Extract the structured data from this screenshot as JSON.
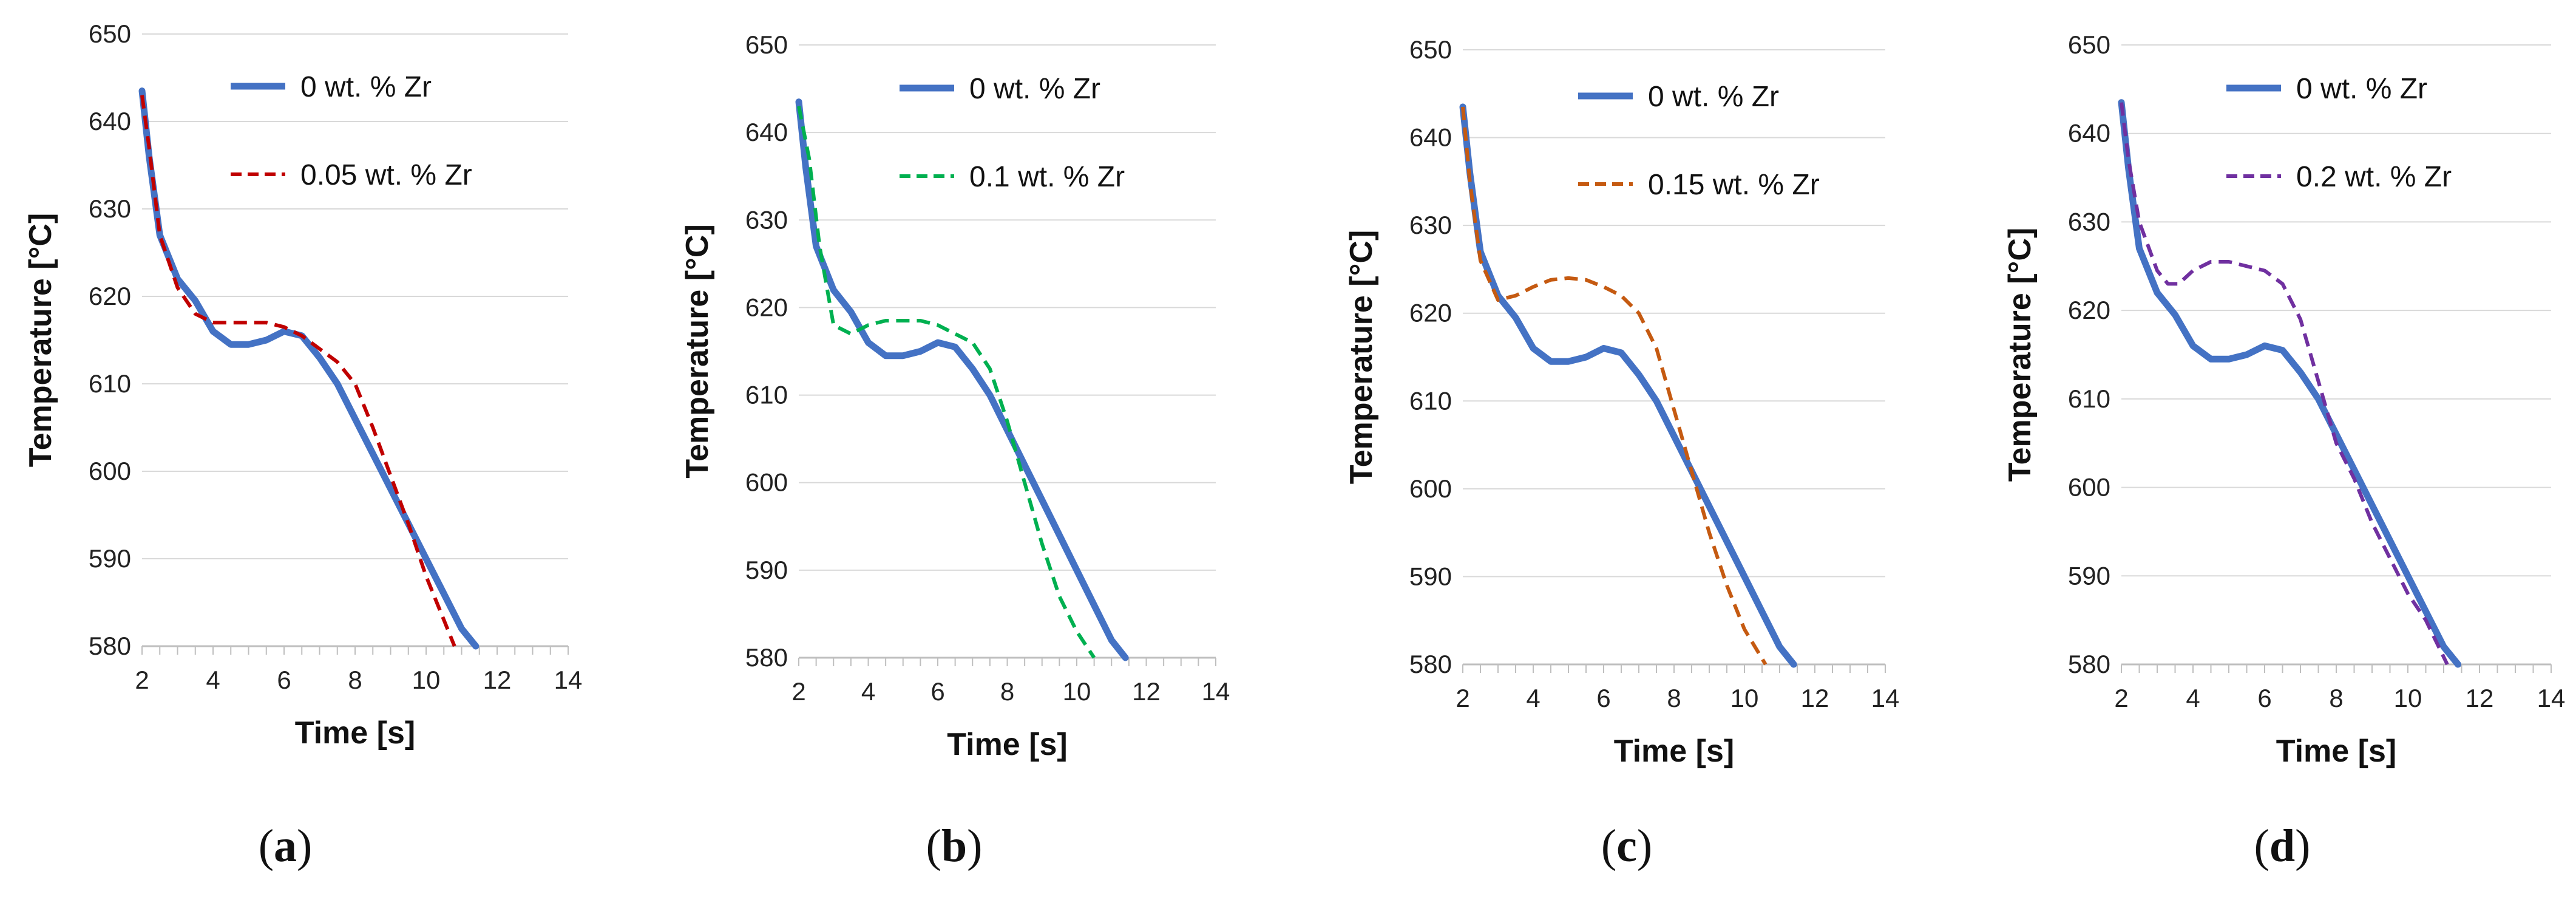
{
  "chart_data": [
    {
      "type": "line",
      "panel_label": "(a)",
      "xlabel": "Time [s]",
      "ylabel": "Temperature [°C]",
      "xlim": [
        2,
        14
      ],
      "ylim": [
        580,
        650
      ],
      "xticks": [
        2,
        4,
        6,
        8,
        10,
        12,
        14
      ],
      "yticks": [
        580,
        590,
        600,
        610,
        620,
        630,
        640,
        650
      ],
      "grid": true,
      "legend_position": "top-right",
      "series": [
        {
          "name": "0 wt. % Zr",
          "color": "#4472C4",
          "dashed": false,
          "x": [
            2,
            2.2,
            2.5,
            3,
            3.5,
            4,
            4.5,
            5,
            5.5,
            6,
            6.5,
            7,
            7.5,
            8,
            8.5,
            9,
            9.5,
            10,
            10.5,
            11,
            11.4
          ],
          "y": [
            643.5,
            636,
            627,
            622,
            619.5,
            616,
            614.5,
            614.5,
            615,
            616,
            615.5,
            613,
            610,
            606,
            602,
            598,
            594,
            590,
            586,
            582,
            580
          ]
        },
        {
          "name": "0.05 wt. % Zr",
          "color": "#C00000",
          "dashed": true,
          "x": [
            2,
            2.2,
            2.5,
            3,
            3.5,
            4,
            4.5,
            5,
            5.5,
            6,
            6.5,
            7,
            7.5,
            8,
            8.5,
            9,
            9.5,
            10,
            10.5,
            10.8
          ],
          "y": [
            643,
            637,
            627,
            621,
            618,
            617,
            617,
            617,
            617,
            616.5,
            615.5,
            614,
            612.5,
            610,
            605,
            599.5,
            594,
            588,
            583,
            580
          ]
        }
      ]
    },
    {
      "type": "line",
      "panel_label": "(b)",
      "xlabel": "Time [s]",
      "ylabel": "Temperature [°C]",
      "xlim": [
        2,
        14
      ],
      "ylim": [
        580,
        650
      ],
      "xticks": [
        2,
        4,
        6,
        8,
        10,
        12,
        14
      ],
      "yticks": [
        580,
        590,
        600,
        610,
        620,
        630,
        640,
        650
      ],
      "grid": true,
      "legend_position": "top-right",
      "series": [
        {
          "name": "0 wt. % Zr",
          "color": "#4472C4",
          "dashed": false,
          "x": [
            2,
            2.2,
            2.5,
            3,
            3.5,
            4,
            4.5,
            5,
            5.5,
            6,
            6.5,
            7,
            7.5,
            8,
            8.5,
            9,
            9.5,
            10,
            10.5,
            11,
            11.4
          ],
          "y": [
            643.5,
            636,
            627,
            622,
            619.5,
            616,
            614.5,
            614.5,
            615,
            616,
            615.5,
            613,
            610,
            606,
            602,
            598,
            594,
            590,
            586,
            582,
            580
          ]
        },
        {
          "name": "0.1 wt. % Zr",
          "color": "#00B050",
          "dashed": true,
          "x": [
            2,
            2.3,
            2.6,
            3,
            3.5,
            4,
            4.5,
            5,
            5.5,
            6,
            6.5,
            7,
            7.5,
            8,
            8.5,
            9,
            9.5,
            10,
            10.5
          ],
          "y": [
            643,
            637,
            627,
            618,
            617,
            618,
            618.5,
            618.5,
            618.5,
            618,
            617,
            616,
            613,
            607,
            600,
            593,
            587,
            583,
            580
          ]
        }
      ]
    },
    {
      "type": "line",
      "panel_label": "(c)",
      "xlabel": "Time [s]",
      "ylabel": "Temperature [°C]",
      "xlim": [
        2,
        14
      ],
      "ylim": [
        580,
        650
      ],
      "xticks": [
        2,
        4,
        6,
        8,
        10,
        12,
        14
      ],
      "yticks": [
        580,
        590,
        600,
        610,
        620,
        630,
        640,
        650
      ],
      "grid": true,
      "legend_position": "top-right",
      "series": [
        {
          "name": "0 wt. % Zr",
          "color": "#4472C4",
          "dashed": false,
          "x": [
            2,
            2.2,
            2.5,
            3,
            3.5,
            4,
            4.5,
            5,
            5.5,
            6,
            6.5,
            7,
            7.5,
            8,
            8.5,
            9,
            9.5,
            10,
            10.5,
            11,
            11.4
          ],
          "y": [
            643.5,
            636,
            627,
            622,
            619.5,
            616,
            614.5,
            614.5,
            615,
            616,
            615.5,
            613,
            610,
            606,
            602,
            598,
            594,
            590,
            586,
            582,
            580
          ]
        },
        {
          "name": "0.15 wt. % Zr",
          "color": "#C55A11",
          "dashed": true,
          "x": [
            2,
            2.2,
            2.5,
            3,
            3.5,
            4,
            4.5,
            5,
            5.5,
            6,
            6.5,
            7,
            7.5,
            8,
            8.5,
            9,
            9.5,
            10,
            10.6
          ],
          "y": [
            643.5,
            635,
            626,
            621.5,
            622,
            623,
            623.8,
            624,
            623.8,
            623,
            622,
            620,
            616,
            609,
            602,
            595,
            589,
            584,
            580
          ]
        }
      ]
    },
    {
      "type": "line",
      "panel_label": "(d)",
      "xlabel": "Time [s]",
      "ylabel": "Temperature [°C]",
      "xlim": [
        2,
        14
      ],
      "ylim": [
        580,
        650
      ],
      "xticks": [
        2,
        4,
        6,
        8,
        10,
        12,
        14
      ],
      "yticks": [
        580,
        590,
        600,
        610,
        620,
        630,
        640,
        650
      ],
      "grid": true,
      "legend_position": "top-right",
      "series": [
        {
          "name": "0 wt. % Zr",
          "color": "#4472C4",
          "dashed": false,
          "x": [
            2,
            2.2,
            2.5,
            3,
            3.5,
            4,
            4.5,
            5,
            5.5,
            6,
            6.5,
            7,
            7.5,
            8,
            8.5,
            9,
            9.5,
            10,
            10.5,
            11,
            11.4
          ],
          "y": [
            643.5,
            636,
            627,
            622,
            619.5,
            616,
            614.5,
            614.5,
            615,
            616,
            615.5,
            613,
            610,
            606,
            602,
            598,
            594,
            590,
            586,
            582,
            580
          ]
        },
        {
          "name": "0.2 wt. % Zr",
          "color": "#7030A0",
          "dashed": true,
          "x": [
            2,
            2.2,
            2.5,
            3,
            3.3,
            3.6,
            4,
            4.5,
            5,
            5.5,
            6,
            6.5,
            7,
            7.5,
            8,
            8.5,
            9,
            9.5,
            10,
            10.5,
            11.1
          ],
          "y": [
            643.5,
            637,
            630,
            624.5,
            623,
            623,
            624.5,
            625.5,
            625.5,
            625,
            624.5,
            623,
            619,
            612,
            605,
            601,
            596,
            592,
            588,
            585,
            580
          ]
        }
      ]
    }
  ]
}
